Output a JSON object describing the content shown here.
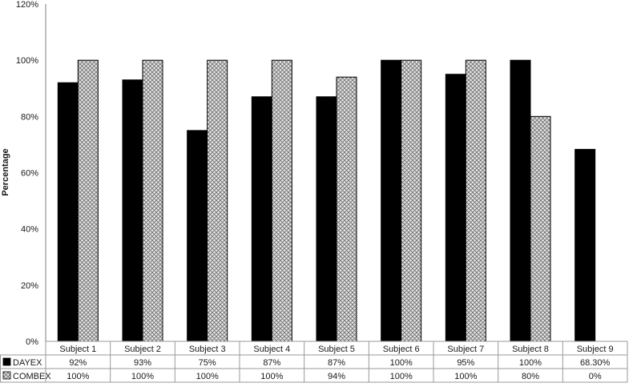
{
  "chart_data": {
    "type": "bar",
    "categories": [
      "Subject 1",
      "Subject 2",
      "Subject 3",
      "Subject 4",
      "Subject 5",
      "Subject 6",
      "Subject 7",
      "Subject 8",
      "Subject 9"
    ],
    "series": [
      {
        "name": "DAYEX",
        "values": [
          92,
          93,
          75,
          87,
          87,
          100,
          95,
          100,
          68.3
        ],
        "labels": [
          "92%",
          "93%",
          "75%",
          "87%",
          "87%",
          "100%",
          "95%",
          "100%",
          "68.30%"
        ],
        "color": "#000000",
        "pattern": "solid"
      },
      {
        "name": "COMBEX",
        "values": [
          100,
          100,
          100,
          100,
          94,
          100,
          100,
          80,
          0
        ],
        "labels": [
          "100%",
          "100%",
          "100%",
          "100%",
          "94%",
          "100%",
          "100%",
          "80%",
          "0%"
        ],
        "color": "#d9d9d9",
        "pattern": "crosshatch"
      }
    ],
    "yticks": [
      "0%",
      "20%",
      "40%",
      "60%",
      "80%",
      "100%",
      "120%"
    ],
    "ylabel": "Percentage",
    "xlabel": "",
    "ylim": [
      0,
      120
    ],
    "grid": false,
    "legend": "data-table-rows"
  }
}
